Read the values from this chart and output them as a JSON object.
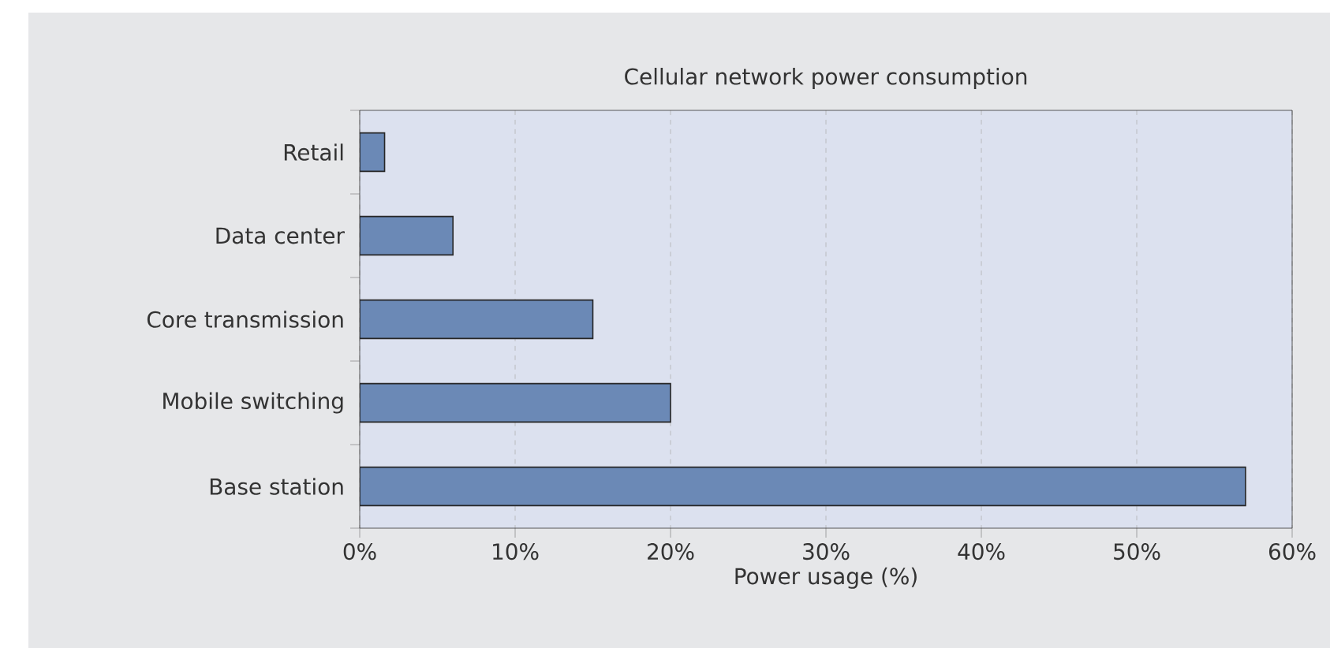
{
  "chart_data": {
    "type": "bar",
    "orientation": "horizontal",
    "title": "Cellular network power consumption",
    "xlabel": "Power usage (%)",
    "categories": [
      "Retail",
      "Data center",
      "Core transmission",
      "Mobile switching",
      "Base station"
    ],
    "values": [
      1.6,
      6,
      15,
      20,
      57
    ],
    "color": "#6b89b6",
    "xlim": [
      0,
      60
    ],
    "xticks": [
      {
        "value": 0,
        "label": "0%"
      },
      {
        "value": 10,
        "label": "10%"
      },
      {
        "value": 20,
        "label": "20%"
      },
      {
        "value": 30,
        "label": "30%"
      },
      {
        "value": 40,
        "label": "40%"
      },
      {
        "value": 50,
        "label": "50%"
      },
      {
        "value": 60,
        "label": "60%"
      }
    ],
    "grid": "x"
  }
}
